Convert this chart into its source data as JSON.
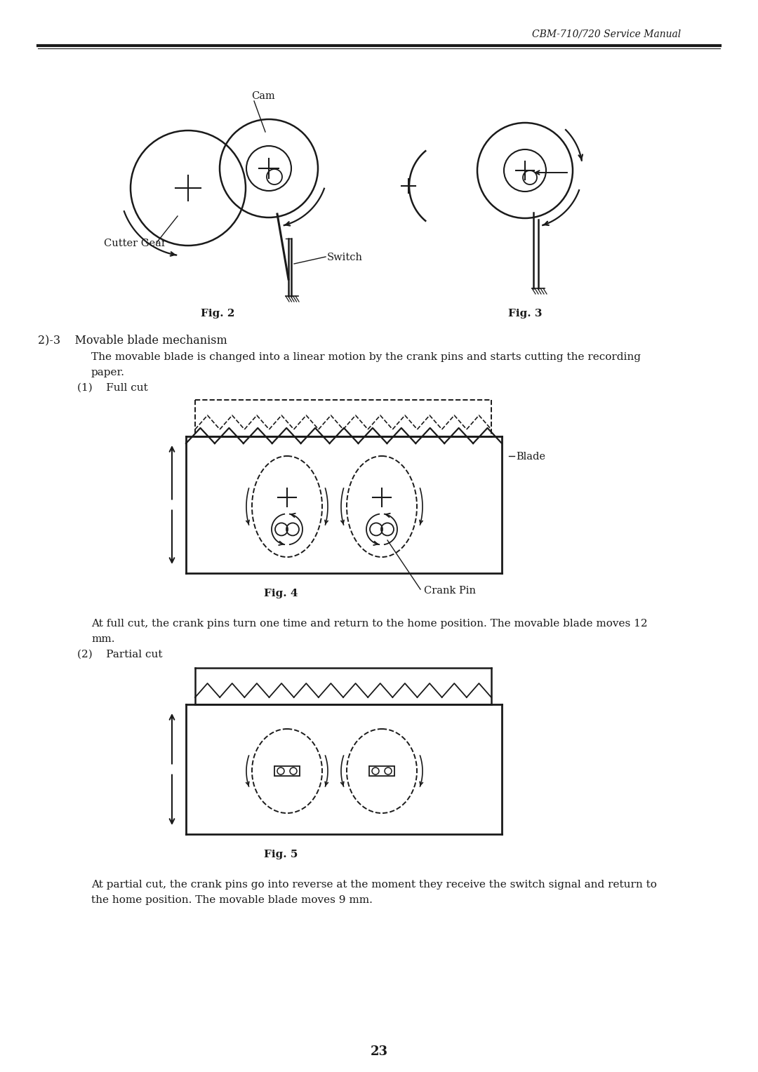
{
  "header_text": "CBM-710/720 Service Manual",
  "page_number": "23",
  "fig2_label": "Fig. 2",
  "fig3_label": "Fig. 3",
  "fig4_label": "Fig. 4",
  "fig5_label": "Fig. 5",
  "cam_label": "Cam",
  "switch_label": "Switch",
  "cutter_gear_label": "Cutter Gear",
  "blade_label": "Blade",
  "crank_pin_label": "Crank Pin",
  "section_header": "2)-3    Movable blade mechanism",
  "para1": "The movable blade is changed into a linear motion by the crank pins and starts cutting the recording",
  "para1b": "paper.",
  "full_cut_label": "(1)    Full cut",
  "partial_cut_label": "(2)    Partial cut",
  "para2": "At full cut, the crank pins turn one time and return to the home position. The movable blade moves 12",
  "para2b": "mm.",
  "para3": "At partial cut, the crank pins go into reverse at the moment they receive the switch signal and return to",
  "para3b": "the home position. The movable blade moves 9 mm.",
  "bg_color": "#ffffff",
  "fg_color": "#1a1a1a"
}
